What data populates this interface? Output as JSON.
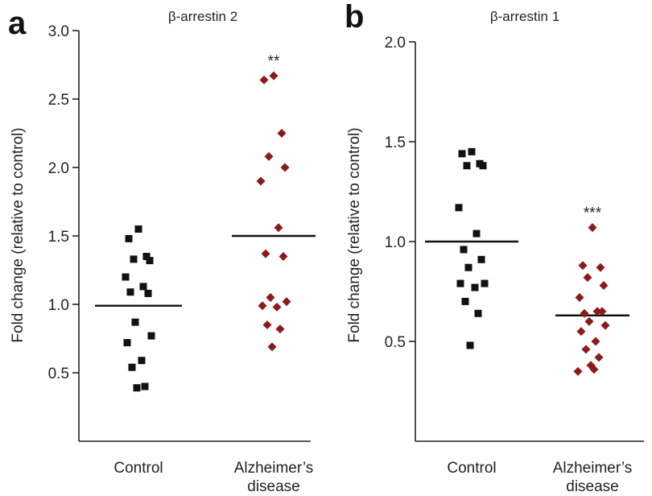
{
  "chart_data": [
    {
      "panel": "a",
      "type": "scatter",
      "title": "β-arrestin 2",
      "ylabel": "Fold change (relative to control)",
      "categories": [
        "Control",
        "Alzheimer's disease"
      ],
      "ylim": [
        0.0,
        3.0
      ],
      "yticks": [
        0.5,
        1.0,
        1.5,
        2.0,
        2.5,
        3.0
      ],
      "ytick_labels": [
        "0.5",
        "1.0",
        "1.5",
        "2.0",
        "2.5",
        "3.0"
      ],
      "series": [
        {
          "name": "Control",
          "marker": "square",
          "color": "#111111",
          "values": [
            1.55,
            1.48,
            1.35,
            1.33,
            1.32,
            1.2,
            1.13,
            1.09,
            1.08,
            0.87,
            0.77,
            0.72,
            0.59,
            0.54,
            0.4,
            0.39
          ],
          "mean": 0.99
        },
        {
          "name": "Alzheimer's disease",
          "marker": "diamond",
          "color": "#8b1a1a",
          "values": [
            2.67,
            2.64,
            2.25,
            2.08,
            2.0,
            1.9,
            1.56,
            1.37,
            1.35,
            1.05,
            1.02,
            0.99,
            0.98,
            0.85,
            0.82,
            0.69
          ],
          "mean": 1.5
        }
      ],
      "annotations": [
        {
          "category": "Alzheimer's disease",
          "text": "**"
        }
      ]
    },
    {
      "panel": "b",
      "type": "scatter",
      "title": "β-arrestin 1",
      "ylabel": "Fold change (relative to control)",
      "categories": [
        "Control",
        "Alzheimer's disease"
      ],
      "ylim": [
        0.0,
        2.0
      ],
      "yticks": [
        0.5,
        1.0,
        1.5,
        2.0
      ],
      "ytick_labels": [
        "0.5",
        "1.0",
        "1.5",
        "2.0"
      ],
      "series": [
        {
          "name": "Control",
          "marker": "square",
          "color": "#111111",
          "values": [
            1.45,
            1.44,
            1.39,
            1.38,
            1.38,
            1.17,
            1.04,
            0.96,
            0.91,
            0.87,
            0.79,
            0.79,
            0.77,
            0.7,
            0.64,
            0.48
          ],
          "mean": 1.0
        },
        {
          "name": "Alzheimer's disease",
          "marker": "diamond",
          "color": "#8b1a1a",
          "values": [
            1.07,
            0.88,
            0.87,
            0.82,
            0.78,
            0.72,
            0.65,
            0.64,
            0.65,
            0.6,
            0.58,
            0.55,
            0.5,
            0.46,
            0.42,
            0.38,
            0.36,
            0.35
          ],
          "mean": 0.63
        }
      ],
      "annotations": [
        {
          "category": "Alzheimer's disease",
          "text": "***"
        }
      ]
    }
  ]
}
